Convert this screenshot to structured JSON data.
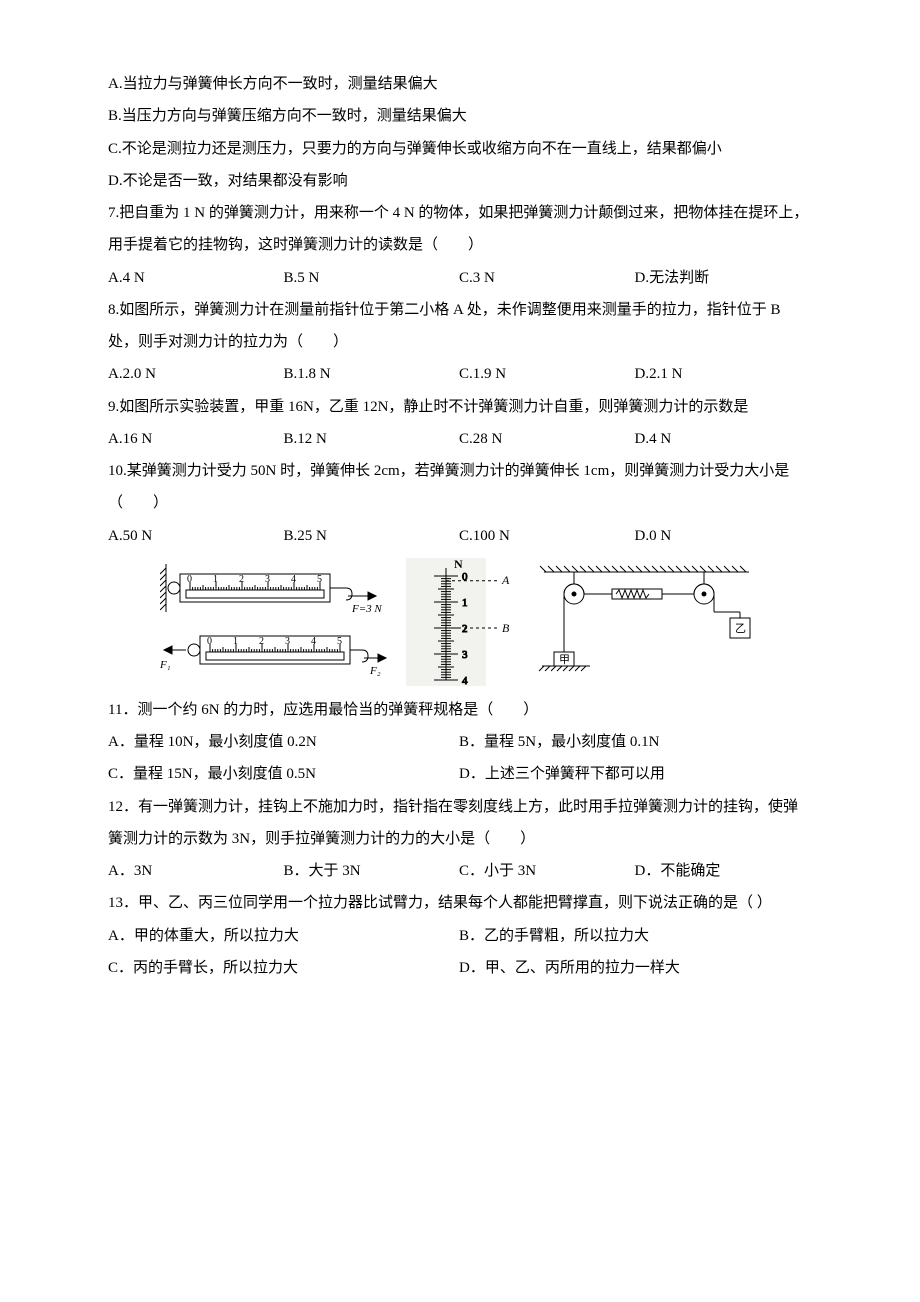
{
  "q6": {
    "optA": "A.当拉力与弹簧伸长方向不一致时，测量结果偏大",
    "optB": "B.当压力方向与弹簧压缩方向不一致时，测量结果偏大",
    "optC": "C.不论是测拉力还是测压力，只要力的方向与弹簧伸长或收缩方向不在一直线上，结果都偏小",
    "optD": "D.不论是否一致，对结果都没有影响"
  },
  "q7": {
    "stem1": "7.把自重为 1 N 的弹簧测力计，用来称一个 4 N 的物体，如果把弹簧测力计颠倒过来，把物体挂在提环上，用手提着它的挂物钩，这时弹簧测力计的读数是（　　）",
    "optA": "A.4 N",
    "optB": "B.5 N",
    "optC": "C.3 N",
    "optD": "D.无法判断"
  },
  "q8": {
    "stem": "8.如图所示，弹簧测力计在测量前指针位于第二小格 A 处，未作调整便用来测量手的拉力，指针位于 B 处，则手对测力计的拉力为（　　）",
    "optA": "A.2.0 N",
    "optB": "B.1.8 N",
    "optC": "C.1.9 N",
    "optD": "D.2.1 N"
  },
  "q9": {
    "stem": "9.如图所示实验装置，甲重 16N，乙重 12N，静止时不计弹簧测力计自重，则弹簧测力计的示数是",
    "optA": "A.16 N",
    "optB": "B.12 N",
    "optC": "C.28 N",
    "optD": "D.4 N"
  },
  "q10": {
    "stem": "10.某弹簧测力计受力 50N 时，弹簧伸长 2cm，若弹簧测力计的弹簧伸长 1cm，则弹簧测力计受力大小是（　　）",
    "optA": "A.50 N",
    "optB": "B.25 N",
    "optC": "C.100 N",
    "optD": "D.0 N"
  },
  "q11": {
    "stem": "11．测一个约 6N 的力时，应选用最恰当的弹簧秤规格是（　　）",
    "optA": "A．量程 10N，最小刻度值 0.2N",
    "optB": "B．量程 5N，最小刻度值 0.1N",
    "optC": "C．量程 15N，最小刻度值 0.5N",
    "optD": "D．上述三个弹簧秤下都可以用"
  },
  "q12": {
    "stem": "12．有一弹簧测力计，挂钩上不施加力时，指针指在零刻度线上方，此时用手拉弹簧测力计的挂钩，使弹簧测力计的示数为 3N，则手拉弹簧测力计的力的大小是（　　）",
    "optA": "A．3N",
    "optB": "B．大于 3N",
    "optC": "C．小于 3N",
    "optD": "D．不能确定"
  },
  "q13": {
    "stem": "13．甲、乙、丙三位同学用一个拉力器比试臂力，结果每个人都能把臂撑直，则下说法正确的是（ ）",
    "optA": "A．甲的体重大，所以拉力大",
    "optB": "B．乙的手臂粗，所以拉力大",
    "optC": "C．丙的手臂长，所以拉力大",
    "optD": "D．甲、乙、丙所用的拉力一样大"
  },
  "fig1": {
    "ticks": [
      "0",
      "1",
      "2",
      "3",
      "4",
      "5"
    ],
    "F_label": "F=3 N",
    "F1": "F₁",
    "F2": "F₂",
    "stroke": "#000000"
  },
  "fig2": {
    "unit_label": "N",
    "ticks": [
      0,
      1,
      2,
      3,
      4
    ],
    "A_label": "A",
    "B_label": "B",
    "bg": "#f2f2ee",
    "stroke": "#000000"
  },
  "fig3": {
    "jia": "甲",
    "yi": "乙",
    "stroke": "#000000"
  }
}
